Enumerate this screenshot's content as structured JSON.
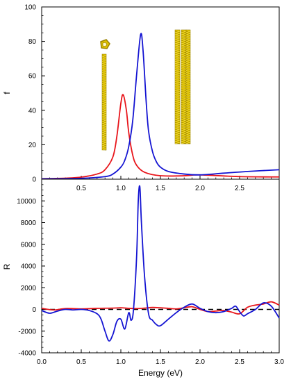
{
  "chart_data": [
    {
      "type": "line",
      "panel": "top",
      "ylabel": "f",
      "xlabel": "",
      "xlim": [
        0.0,
        3.0
      ],
      "ylim": [
        0,
        100
      ],
      "x_ticks": [
        0.5,
        1.0,
        1.5,
        2.0,
        2.5
      ],
      "x_tick_labels": [
        "0.5",
        "1.0",
        "1.5",
        "2.0",
        "2.5"
      ],
      "y_ticks": [
        0,
        20,
        40,
        60,
        80,
        100
      ],
      "y_tick_labels": [
        "0",
        "20",
        "40",
        "60",
        "80",
        "100"
      ],
      "grid": false,
      "series": [
        {
          "color": "#e8141a",
          "x": [
            0.0,
            0.3,
            0.5,
            0.7,
            0.8,
            0.9,
            0.95,
            1.0,
            1.03,
            1.07,
            1.1,
            1.15,
            1.2,
            1.3,
            1.5,
            1.8,
            2.0,
            2.5,
            3.0
          ],
          "values": [
            0.3,
            0.6,
            1.2,
            3.0,
            5.5,
            13.0,
            25.0,
            44.0,
            49.0,
            40.0,
            27.0,
            14.0,
            8.0,
            4.0,
            2.0,
            2.0,
            2.5,
            1.5,
            1.3
          ]
        },
        {
          "color": "#1414d2",
          "x": [
            0.0,
            0.5,
            0.8,
            0.9,
            1.0,
            1.05,
            1.1,
            1.15,
            1.2,
            1.25,
            1.28,
            1.32,
            1.35,
            1.4,
            1.45,
            1.5,
            1.6,
            1.8,
            2.0,
            2.3,
            2.6,
            3.0
          ],
          "values": [
            0.2,
            0.5,
            1.5,
            3.0,
            7.0,
            11.0,
            19.0,
            34.0,
            61.0,
            84.0,
            75.0,
            45.0,
            28.0,
            16.0,
            10.0,
            7.0,
            4.5,
            3.0,
            2.5,
            3.5,
            4.5,
            5.5
          ]
        }
      ]
    },
    {
      "type": "line",
      "panel": "bottom",
      "xlabel": "Energy (eV)",
      "ylabel": "R",
      "xlim": [
        0.0,
        3.0
      ],
      "ylim": [
        -4000,
        12000
      ],
      "x_ticks": [
        0.0,
        0.5,
        1.0,
        1.5,
        2.0,
        2.5,
        3.0
      ],
      "x_tick_labels": [
        "0.0",
        "0.5",
        "1.0",
        "1.5",
        "2.0",
        "2.5",
        "3.0"
      ],
      "y_ticks": [
        -4000,
        -2000,
        0,
        2000,
        4000,
        6000,
        8000,
        10000
      ],
      "y_tick_labels": [
        "-4000",
        "-2000",
        "0",
        "2000",
        "4000",
        "6000",
        "8000",
        "10000"
      ],
      "grid": false,
      "zero_line": {
        "y": 0,
        "style": "dashed",
        "color": "#000000"
      },
      "series": [
        {
          "color": "#e8141a",
          "x": [
            0.0,
            0.15,
            0.3,
            0.5,
            0.7,
            0.9,
            1.0,
            1.1,
            1.2,
            1.3,
            1.4,
            1.5,
            1.6,
            1.7,
            1.8,
            1.9,
            2.0,
            2.1,
            2.2,
            2.3,
            2.4,
            2.5,
            2.6,
            2.7,
            2.8,
            2.9,
            3.0
          ],
          "values": [
            100,
            -50,
            80,
            50,
            100,
            120,
            150,
            100,
            80,
            120,
            180,
            150,
            100,
            50,
            150,
            250,
            0,
            -200,
            -150,
            -100,
            -250,
            -400,
            200,
            400,
            500,
            700,
            400
          ]
        },
        {
          "color": "#1414d2",
          "x": [
            0.0,
            0.1,
            0.2,
            0.3,
            0.4,
            0.5,
            0.6,
            0.7,
            0.75,
            0.8,
            0.85,
            0.9,
            0.95,
            1.0,
            1.05,
            1.1,
            1.13,
            1.16,
            1.2,
            1.22,
            1.24,
            1.26,
            1.3,
            1.35,
            1.4,
            1.45,
            1.5,
            1.6,
            1.7,
            1.8,
            1.9,
            2.0,
            2.1,
            2.2,
            2.3,
            2.4,
            2.45,
            2.5,
            2.55,
            2.6,
            2.7,
            2.8,
            2.9,
            3.0
          ],
          "values": [
            -100,
            -350,
            -150,
            0,
            -50,
            0,
            -100,
            -400,
            -900,
            -2000,
            -2900,
            -2300,
            -1100,
            -900,
            -1800,
            -300,
            -1000,
            0,
            5000,
            10000,
            11300,
            8000,
            3000,
            -400,
            -1000,
            -1400,
            -1500,
            -900,
            -300,
            200,
            500,
            100,
            -200,
            -300,
            -200,
            100,
            300,
            -200,
            -600,
            -400,
            0,
            600,
            300,
            -800
          ]
        }
      ]
    }
  ],
  "insets": [
    {
      "name": "single-nanotube-inset",
      "colors": {
        "body": "#e0c200",
        "dark": "#9a8200"
      }
    },
    {
      "name": "nanotube-bundle-inset",
      "colors": {
        "body": "#e0c200",
        "dark": "#9a8200"
      }
    }
  ]
}
